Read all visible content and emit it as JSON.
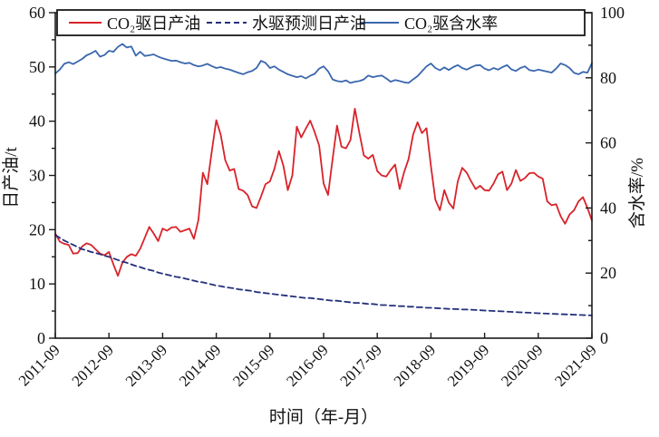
{
  "chart_data": {
    "type": "line",
    "xlabel": "时间（年-月）",
    "x_tick_labels": [
      "2011-09",
      "2012-09",
      "2013-09",
      "2014-09",
      "2015-09",
      "2016-09",
      "2017-09",
      "2018-09",
      "2019-09",
      "2020-09",
      "2021-09"
    ],
    "x_tick_months": [
      0,
      12,
      24,
      36,
      48,
      60,
      72,
      84,
      96,
      108,
      120
    ],
    "x_month_range": [
      0,
      120
    ],
    "left_axis": {
      "label": "日产油/t",
      "min": 0,
      "max": 60,
      "major_ticks": [
        0,
        10,
        20,
        30,
        40,
        50,
        60
      ],
      "minor_step": 5
    },
    "right_axis": {
      "label": "含水率/%",
      "min": 0,
      "max": 100,
      "major_ticks": [
        0,
        20,
        40,
        60,
        80,
        100
      ],
      "minor_step": 10
    },
    "grid": "off",
    "legend_position": "top-inside-box",
    "colors": {
      "oil_line": "#d8232a",
      "predicted_line": "#23307c",
      "watercut_line": "#3a67ad",
      "axis": "#1a1a1a"
    },
    "series": [
      {
        "name": "CO₂驱日产油",
        "axis": "left",
        "style": "solid",
        "color": "#d8232a",
        "values": [
          19.3,
          17.8,
          17.4,
          17.2,
          15.6,
          15.7,
          16.9,
          17.5,
          17.2,
          16.4,
          15.6,
          15.3,
          15.9,
          13.6,
          11.5,
          13.9,
          15.0,
          15.5,
          15.2,
          16.5,
          18.5,
          20.5,
          19.3,
          17.9,
          20.2,
          19.8,
          20.4,
          20.5,
          19.6,
          19.9,
          20.2,
          18.3,
          21.8,
          30.5,
          28.4,
          34.5,
          40.2,
          37.5,
          32.8,
          30.9,
          31.2,
          27.5,
          27.2,
          26.4,
          24.3,
          24.0,
          26.1,
          28.4,
          28.9,
          31.2,
          34.5,
          31.8,
          27.3,
          30.0,
          39.0,
          37.0,
          38.6,
          40.1,
          38.0,
          35.5,
          28.5,
          26.4,
          33.0,
          39.2,
          35.3,
          35.0,
          36.5,
          42.3,
          37.8,
          33.7,
          33.1,
          33.8,
          30.8,
          30.0,
          29.8,
          31.0,
          32.0,
          27.5,
          30.6,
          33.0,
          37.5,
          39.8,
          37.8,
          38.7,
          31.7,
          25.5,
          23.6,
          27.3,
          25.0,
          23.9,
          28.9,
          31.4,
          30.5,
          28.9,
          27.5,
          28.1,
          27.3,
          27.2,
          28.5,
          30.2,
          30.7,
          27.3,
          28.5,
          31.0,
          29.0,
          29.5,
          30.4,
          30.5,
          29.8,
          29.4,
          25.2,
          24.5,
          24.7,
          22.5,
          21.1,
          22.8,
          23.6,
          25.2,
          26.0,
          24.0,
          21.7
        ]
      },
      {
        "name": "水驱预测日产油",
        "axis": "left",
        "style": "dashed",
        "color": "#23307c",
        "values": [
          19.0,
          18.5,
          18.0,
          17.6,
          17.2,
          16.8,
          16.4,
          16.2,
          15.9,
          15.7,
          15.5,
          15.2,
          15.0,
          14.7,
          14.4,
          14.1,
          13.9,
          13.6,
          13.3,
          13.1,
          12.8,
          12.6,
          12.4,
          12.1,
          11.9,
          11.7,
          11.5,
          11.3,
          11.2,
          11.0,
          10.8,
          10.6,
          10.4,
          10.3,
          10.1,
          9.9,
          9.7,
          9.6,
          9.4,
          9.3,
          9.2,
          9.0,
          8.9,
          8.8,
          8.7,
          8.5,
          8.4,
          8.3,
          8.2,
          8.1,
          8.0,
          7.9,
          7.8,
          7.7,
          7.6,
          7.5,
          7.4,
          7.4,
          7.3,
          7.2,
          7.1,
          7.0,
          6.9,
          6.9,
          6.8,
          6.7,
          6.6,
          6.5,
          6.5,
          6.4,
          6.3,
          6.3,
          6.2,
          6.1,
          6.1,
          6.0,
          6.0,
          5.9,
          5.9,
          5.8,
          5.8,
          5.7,
          5.7,
          5.6,
          5.6,
          5.55,
          5.5,
          5.45,
          5.4,
          5.38,
          5.35,
          5.3,
          5.28,
          5.25,
          5.2,
          5.15,
          5.1,
          5.06,
          5.02,
          4.98,
          4.94,
          4.89,
          4.85,
          4.81,
          4.77,
          4.73,
          4.69,
          4.64,
          4.6,
          4.57,
          4.53,
          4.5,
          4.47,
          4.43,
          4.4,
          4.37,
          4.33,
          4.3,
          4.27,
          4.23,
          4.2
        ]
      },
      {
        "name": "CO₂驱含水率",
        "axis": "right",
        "style": "solid",
        "color": "#3a67ad",
        "values": [
          81.3,
          82.5,
          84.3,
          84.8,
          84.2,
          85.0,
          85.8,
          86.9,
          87.5,
          88.3,
          86.5,
          87.0,
          88.3,
          88.0,
          89.5,
          90.4,
          89.3,
          89.6,
          86.8,
          88.0,
          86.7,
          86.9,
          87.2,
          86.5,
          86.0,
          85.6,
          85.2,
          85.3,
          84.8,
          84.4,
          84.6,
          83.9,
          83.5,
          83.8,
          84.3,
          83.6,
          83.0,
          83.3,
          82.8,
          82.5,
          82.0,
          81.5,
          81.1,
          81.7,
          82.1,
          83.0,
          85.2,
          84.6,
          83.0,
          83.5,
          82.5,
          81.8,
          81.1,
          80.6,
          80.2,
          80.5,
          79.8,
          80.6,
          81.2,
          82.8,
          83.5,
          82.0,
          79.5,
          79.0,
          78.8,
          79.2,
          78.4,
          78.8,
          79.0,
          79.5,
          80.7,
          80.2,
          80.5,
          80.7,
          79.8,
          78.8,
          79.3,
          79.0,
          78.6,
          78.4,
          79.5,
          80.5,
          82.0,
          83.5,
          84.4,
          83.0,
          82.3,
          83.2,
          82.4,
          83.3,
          83.9,
          83.0,
          82.5,
          83.2,
          83.8,
          83.9,
          82.8,
          82.3,
          83.0,
          82.5,
          83.3,
          83.9,
          82.6,
          82.1,
          83.0,
          83.5,
          82.4,
          82.1,
          82.5,
          82.2,
          81.9,
          81.6,
          82.8,
          84.4,
          83.9,
          83.0,
          81.5,
          81.1,
          81.8,
          81.6,
          84.5
        ]
      }
    ]
  }
}
